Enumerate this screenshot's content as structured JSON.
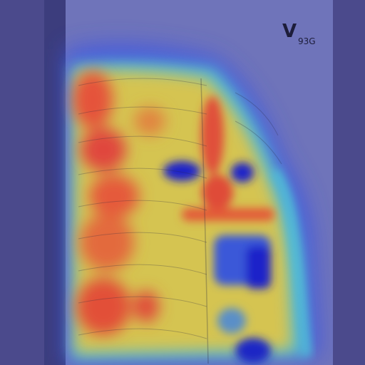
{
  "image": {
    "description_type": "chest radiograph with heatmap overlay",
    "colormap": "jet",
    "colors": {
      "frame": "#4b4a8c",
      "film": "#6d72b8",
      "hot": "#e0483a",
      "warm": "#e9c24a",
      "cool": "#4fc7d3",
      "cold": "#1b20c9"
    }
  },
  "marker": {
    "glyph": "V",
    "text": "93G"
  }
}
